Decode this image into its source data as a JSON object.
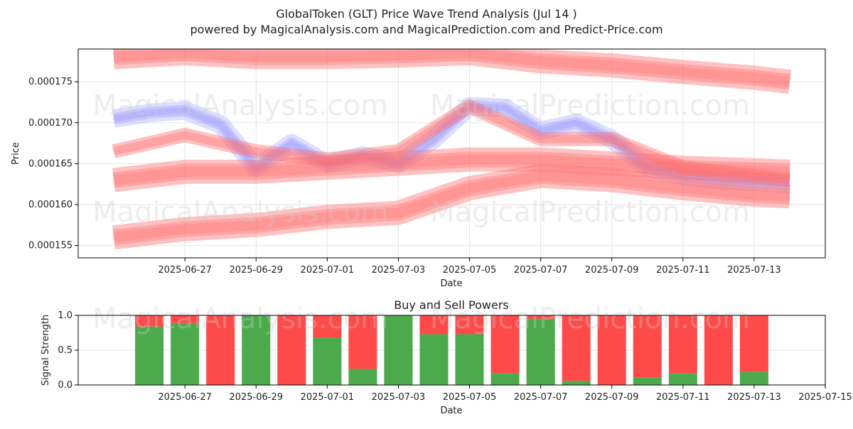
{
  "title": "GlobalToken (GLT) Price Wave Trend Analysis (Jul 14 )",
  "subtitle": "powered by MagicalAnalysis.com and MagicalPrediction.com and Predict-Price.com",
  "watermarks": [
    "MagicalAnalysis.com",
    "MagicalPrediction.com"
  ],
  "colors": {
    "red_band": "#ff6b6b",
    "blue_band": "#8888ff",
    "buy": "#4caa4c",
    "sell": "#ff4a4a",
    "grid": "#e6e6e6"
  },
  "chart_data": [
    {
      "type": "area",
      "title": "",
      "xlabel": "Date",
      "ylabel": "Price",
      "x_ticks": [
        "2025-06-27",
        "2025-06-29",
        "2025-07-01",
        "2025-07-03",
        "2025-07-05",
        "2025-07-07",
        "2025-07-09",
        "2025-07-11",
        "2025-07-13"
      ],
      "y_ticks": [
        "0.000155",
        "0.000160",
        "0.000165",
        "0.000170",
        "0.000175"
      ],
      "xlim": [
        "2025-06-24",
        "2025-07-15"
      ],
      "ylim": [
        0.0001535,
        0.000179
      ],
      "grid": true,
      "series": [
        {
          "color": "#8888ff",
          "x": [
            "2025-06-25",
            "2025-06-26",
            "2025-06-27",
            "2025-06-28",
            "2025-06-29",
            "2025-06-30",
            "2025-07-01",
            "2025-07-02",
            "2025-07-03",
            "2025-07-04",
            "2025-07-05",
            "2025-07-06",
            "2025-07-07",
            "2025-07-08",
            "2025-07-09",
            "2025-07-10",
            "2025-07-11",
            "2025-07-12",
            "2025-07-13",
            "2025-07-14"
          ],
          "values": [
            0.0001705,
            0.0001712,
            0.0001715,
            0.0001698,
            0.0001645,
            0.0001675,
            0.000165,
            0.000166,
            0.000165,
            0.000168,
            0.000172,
            0.0001718,
            0.000169,
            0.00017,
            0.000168,
            0.0001645,
            0.0001635,
            0.000163,
            0.0001628,
            0.0001625
          ]
        },
        {
          "color": "#ff6b6b",
          "x": [
            "2025-06-25",
            "2025-06-27",
            "2025-06-29",
            "2025-07-01",
            "2025-07-03",
            "2025-07-05",
            "2025-07-07",
            "2025-07-09",
            "2025-07-11",
            "2025-07-13",
            "2025-07-14"
          ],
          "values": [
            0.0001665,
            0.0001685,
            0.0001665,
            0.0001655,
            0.0001665,
            0.000172,
            0.000168,
            0.000168,
            0.0001645,
            0.0001635,
            0.000163
          ]
        },
        {
          "color": "#ff6b6b",
          "x": [
            "2025-06-25",
            "2025-06-27",
            "2025-06-29",
            "2025-07-01",
            "2025-07-03",
            "2025-07-05",
            "2025-07-07",
            "2025-07-09",
            "2025-07-11",
            "2025-07-13",
            "2025-07-14"
          ],
          "values": [
            0.000163,
            0.000164,
            0.000164,
            0.0001645,
            0.000165,
            0.0001655,
            0.0001655,
            0.000165,
            0.0001645,
            0.0001642,
            0.000164
          ]
        },
        {
          "color": "#ff6b6b",
          "x": [
            "2025-06-25",
            "2025-06-27",
            "2025-06-29",
            "2025-07-01",
            "2025-07-03",
            "2025-07-05",
            "2025-07-07",
            "2025-07-09",
            "2025-07-11",
            "2025-07-13",
            "2025-07-14"
          ],
          "values": [
            0.000156,
            0.000157,
            0.0001575,
            0.0001585,
            0.000159,
            0.000162,
            0.0001635,
            0.000163,
            0.000162,
            0.0001612,
            0.000161
          ]
        },
        {
          "color": "#ff6b6b",
          "x": [
            "2025-06-25",
            "2025-06-27",
            "2025-06-29",
            "2025-07-01",
            "2025-07-03",
            "2025-07-05",
            "2025-07-07",
            "2025-07-09",
            "2025-07-11",
            "2025-07-13",
            "2025-07-14"
          ],
          "values": [
            0.000178,
            0.0001785,
            0.000178,
            0.000178,
            0.0001782,
            0.0001785,
            0.0001775,
            0.000177,
            0.0001762,
            0.0001755,
            0.000175
          ]
        }
      ]
    },
    {
      "type": "bar",
      "title": "Buy and Sell Powers",
      "xlabel": "Date",
      "ylabel": "Signal Strength",
      "x_ticks": [
        "2025-06-27",
        "2025-06-29",
        "2025-07-01",
        "2025-07-03",
        "2025-07-05",
        "2025-07-07",
        "2025-07-09",
        "2025-07-11",
        "2025-07-13",
        "2025-07-15"
      ],
      "y_ticks": [
        "0.0",
        "0.5",
        "1.0"
      ],
      "xlim": [
        "2025-06-24",
        "2025-07-15"
      ],
      "ylim": [
        0,
        1
      ],
      "grid": true,
      "categories": [
        "2025-06-26",
        "2025-06-27",
        "2025-06-28",
        "2025-06-29",
        "2025-06-30",
        "2025-07-01",
        "2025-07-02",
        "2025-07-03",
        "2025-07-04",
        "2025-07-05",
        "2025-07-06",
        "2025-07-07",
        "2025-07-08",
        "2025-07-09",
        "2025-07-10",
        "2025-07-11",
        "2025-07-12",
        "2025-07-13",
        "2025-07-14"
      ],
      "series": [
        {
          "color": "#4caa4c",
          "values": [
            0.84,
            0.89,
            0.0,
            1.0,
            0.0,
            0.68,
            0.23,
            1.0,
            0.73,
            0.73,
            0.17,
            0.95,
            0.06,
            0.0,
            0.11,
            0.17,
            0.0,
            0.19,
            0.0
          ]
        },
        {
          "color": "#ff4a4a",
          "values": [
            0.16,
            0.11,
            1.0,
            0.0,
            1.0,
            0.32,
            0.77,
            0.0,
            0.27,
            0.27,
            0.83,
            0.05,
            0.94,
            1.0,
            0.89,
            0.83,
            1.0,
            0.81,
            0.0
          ]
        }
      ]
    }
  ]
}
